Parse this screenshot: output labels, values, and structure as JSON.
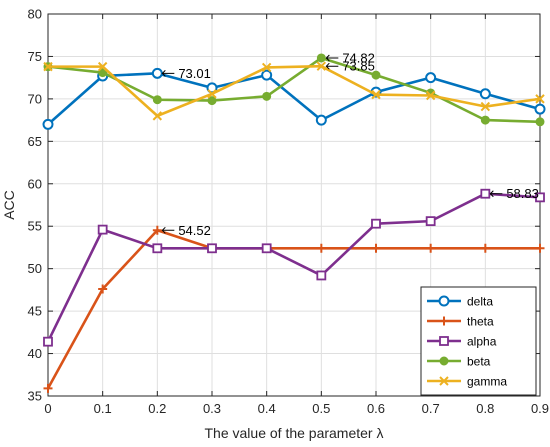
{
  "chart_data": {
    "type": "line",
    "title": "",
    "xlabel": "The value of the parameter λ",
    "ylabel": "ACC",
    "xlim": [
      0,
      0.9
    ],
    "ylim": [
      35,
      80
    ],
    "x": [
      0,
      0.1,
      0.2,
      0.3,
      0.4,
      0.5,
      0.6,
      0.7,
      0.8,
      0.9
    ],
    "x_ticks": [
      "0",
      "0.1",
      "0.2",
      "0.3",
      "0.4",
      "0.5",
      "0.6",
      "0.7",
      "0.8",
      "0.9"
    ],
    "y_ticks": [
      35,
      40,
      45,
      50,
      55,
      60,
      65,
      70,
      75,
      80
    ],
    "grid": true,
    "legend_position": "bottom-right",
    "series": [
      {
        "name": "delta",
        "color": "#0072BD",
        "marker": "circle",
        "values": [
          67.0,
          72.7,
          73.01,
          71.3,
          72.8,
          67.5,
          70.8,
          72.5,
          70.6,
          68.8
        ]
      },
      {
        "name": "theta",
        "color": "#D95319",
        "marker": "plus",
        "values": [
          35.9,
          47.6,
          54.52,
          52.4,
          52.4,
          52.4,
          52.4,
          52.4,
          52.4,
          52.4
        ]
      },
      {
        "name": "alpha",
        "color": "#7E2F8E",
        "marker": "square",
        "values": [
          41.4,
          54.6,
          52.4,
          52.4,
          52.4,
          49.2,
          55.3,
          55.6,
          58.83,
          58.4
        ]
      },
      {
        "name": "beta",
        "color": "#77AC30",
        "marker": "dot",
        "values": [
          73.8,
          73.1,
          69.9,
          69.8,
          70.3,
          74.82,
          72.8,
          70.7,
          67.5,
          67.3
        ]
      },
      {
        "name": "gamma",
        "color": "#EDB120",
        "marker": "x",
        "values": [
          73.8,
          73.8,
          68.0,
          70.6,
          73.7,
          73.85,
          70.5,
          70.4,
          69.1,
          70.0
        ]
      }
    ],
    "annotations": [
      {
        "text": "73.01",
        "x": 0.2,
        "y": 73.01
      },
      {
        "text": "54.52",
        "x": 0.2,
        "y": 54.52
      },
      {
        "text": "74.82",
        "x": 0.5,
        "y": 74.82
      },
      {
        "text": "73.85",
        "x": 0.5,
        "y": 73.85
      },
      {
        "text": "58.83",
        "x": 0.8,
        "y": 58.83
      }
    ]
  }
}
